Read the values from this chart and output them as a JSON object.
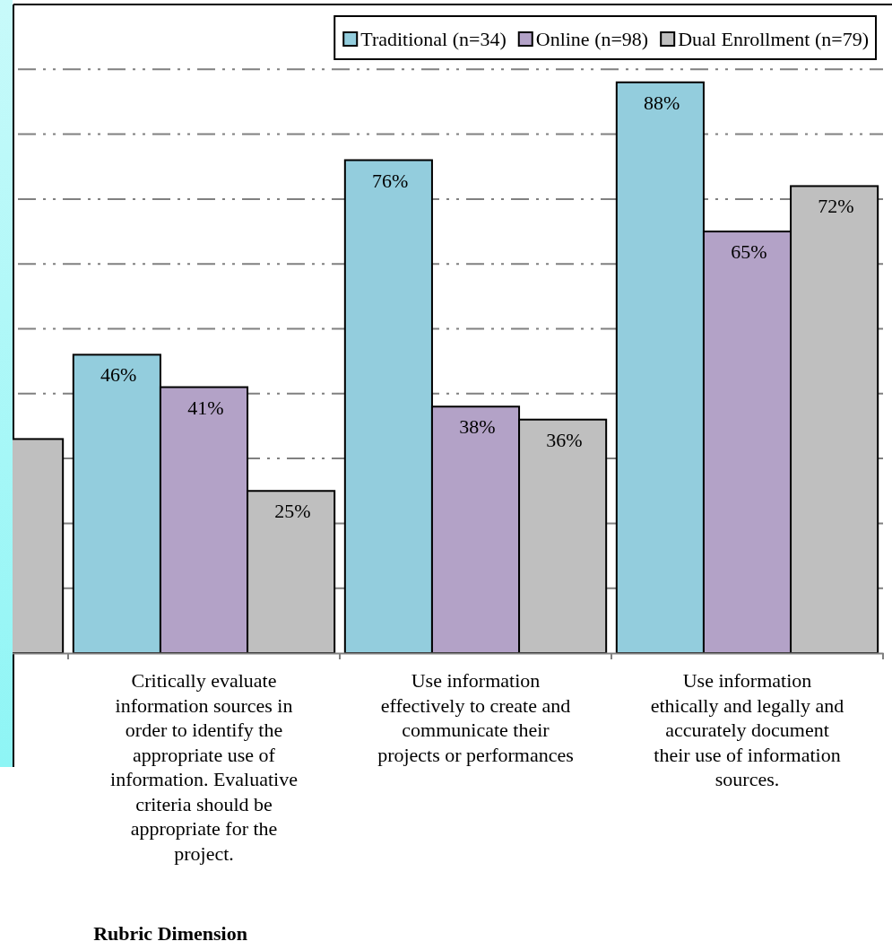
{
  "chart_data": {
    "type": "bar",
    "xlabel": "Rubric Dimension",
    "categories": [
      null,
      "Critically evaluate\ninformation sources in\norder to identify the\nappropriate use of\ninformation.  Evaluative\ncriteria should be\nappropriate for the\nproject.",
      "Use information\neffectively to create and\ncommunicate their\nprojects or performances",
      "Use information\nethically and legally and\naccurately document\ntheir use of information\nsources."
    ],
    "series": [
      {
        "name": "Traditional (n=34)",
        "color": "#93cddd",
        "values": [
          null,
          46,
          76,
          88
        ],
        "value_labels": [
          null,
          "46%",
          "76%",
          "88%"
        ]
      },
      {
        "name": "Online (n=98)",
        "color": "#b3a2c7",
        "values": [
          null,
          41,
          38,
          65
        ],
        "value_labels": [
          null,
          "41%",
          "38%",
          "65%"
        ]
      },
      {
        "name": "Dual Enrollment (n=79)",
        "color": "#bfbfbf",
        "values": [
          33,
          25,
          36,
          72
        ],
        "value_labels": [
          null,
          "25%",
          "36%",
          "72%"
        ]
      }
    ],
    "ylim": [
      0,
      100
    ],
    "yticks": [
      {
        "value": 10,
        "label": null
      },
      {
        "value": 20,
        "label": null
      },
      {
        "value": 30,
        "label": null
      },
      {
        "value": 40,
        "label": null
      },
      {
        "value": 50,
        "label": null
      },
      {
        "value": 60,
        "label": null
      },
      {
        "value": 70,
        "label": null
      },
      {
        "value": 80,
        "label": null
      },
      {
        "value": 90,
        "label": null
      }
    ],
    "grid": "y",
    "tick_labels": "x",
    "legend": "top right"
  }
}
